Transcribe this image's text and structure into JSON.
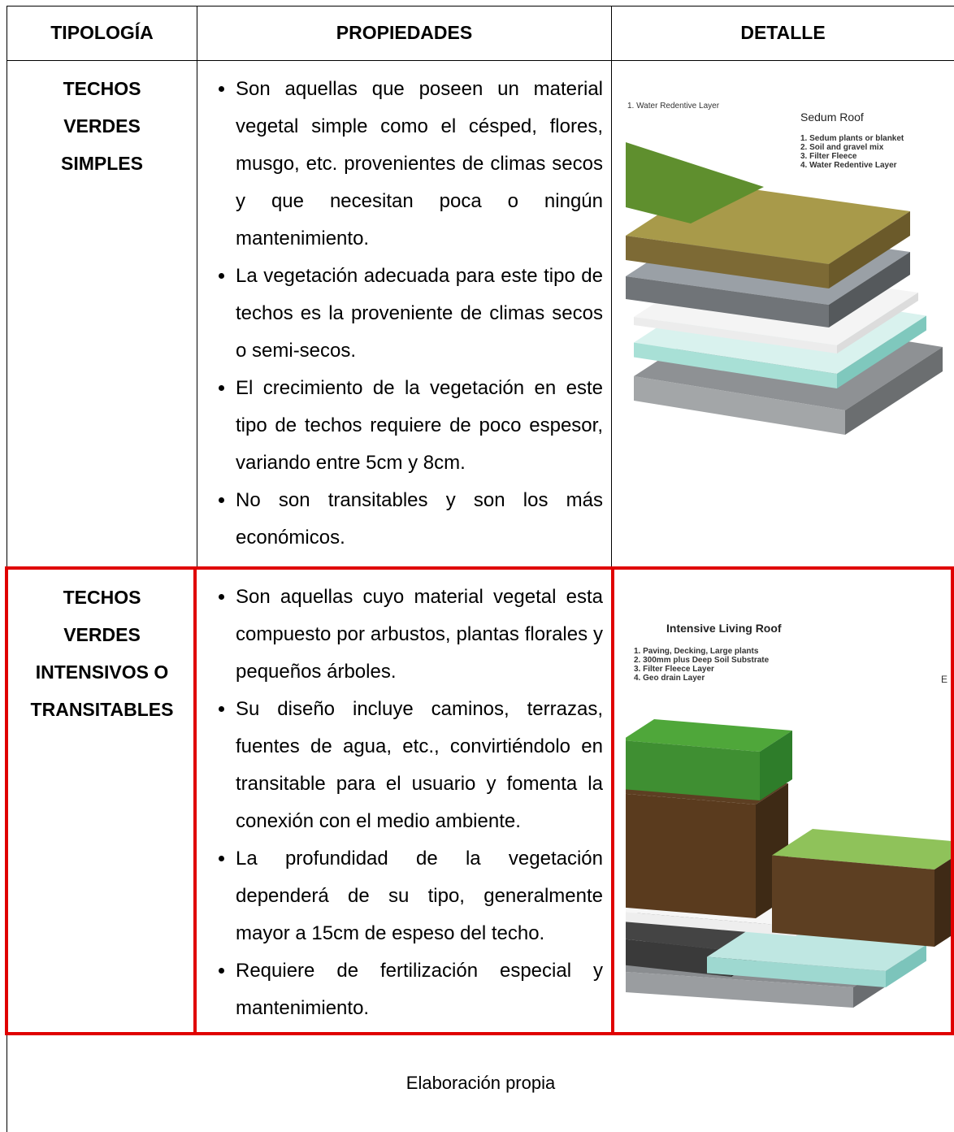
{
  "table": {
    "header": [
      "TIPOLOGÍA",
      "PROPIEDADES",
      "DETALLE"
    ],
    "rows": [
      {
        "typology": [
          "TECHOS",
          "VERDES",
          "SIMPLES"
        ],
        "properties": [
          "Son aquellas que poseen un material vegetal simple como el césped, flores, musgo, etc. provenientes de climas secos y que necesitan poca o ningún mantenimiento.",
          "La vegetación adecuada para este tipo de techos es la proveniente de climas secos o semi-secos.",
          "El crecimiento de la vegetación en este tipo de techos requiere de poco espesor, variando entre 5cm y 8cm.",
          "No son transitables y son los  más económicos."
        ],
        "detail": {
          "corner": "1. Water Redentive Layer",
          "title": "Sedum Roof",
          "items": [
            "1. Sedum plants or blanket",
            "2. Soil and gravel mix",
            "3. Filter Fleece",
            "4. Water Redentive Layer"
          ]
        }
      },
      {
        "typology": [
          "TECHOS",
          "VERDES",
          "INTENSIVOS O",
          "TRANSITABLES"
        ],
        "properties": [
          "Son aquellas cuyo material vegetal esta compuesto por arbustos, plantas florales y pequeños árboles.",
          "Su diseño incluye caminos, terrazas, fuentes de agua, etc., convirtiéndolo en transitable para el usuario y fomenta la conexión con el medio ambiente.",
          "La profundidad de la vegetación dependerá de su tipo, generalmente mayor a 15cm de espeso del techo.",
          "Requiere de fertilización especial y mantenimiento."
        ],
        "detail": {
          "corner": "E",
          "title": "Intensive Living Roof",
          "items": [
            "1. Paving, Decking, Large plants",
            "2. 300mm plus Deep Soil Substrate",
            "3. Filter Fleece Layer",
            "4. Geo drain Layer"
          ]
        }
      }
    ],
    "footer": "Elaboración propia"
  }
}
